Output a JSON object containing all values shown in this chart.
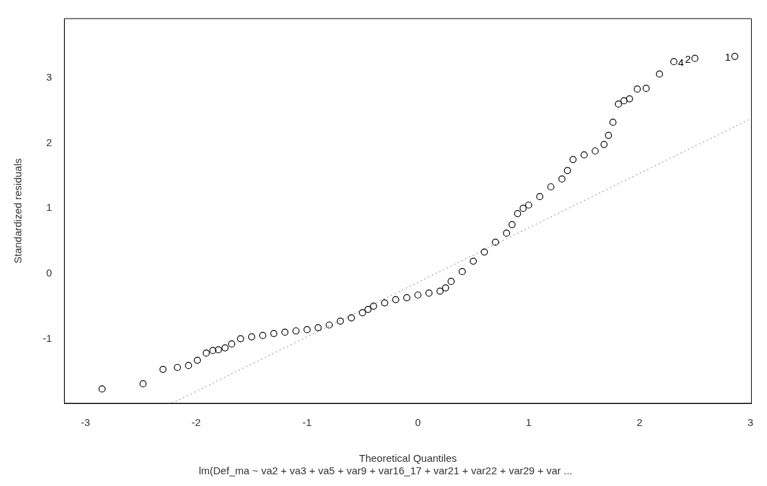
{
  "chart_data": {
    "type": "scatter",
    "xlabel": "Theoretical Quantiles",
    "ylabel": "Standardized residuals",
    "subtitle": "lm(Def_ma ~ va2 + va3 + va5 + var9 + var16_17 + var21 + var22 + var29 + var ...",
    "xlim": [
      -3.19,
      3.01
    ],
    "ylim": [
      -1.99,
      3.91
    ],
    "xticks": [
      -3,
      -2,
      -1,
      0,
      1,
      2,
      3
    ],
    "yticks": [
      -1,
      0,
      1,
      2,
      3
    ],
    "grid": false,
    "legend": false,
    "marker": "circle",
    "series": [
      {
        "color": "#000000",
        "x": [
          -2.85,
          -2.48,
          -2.3,
          -2.17,
          -2.07,
          -1.99,
          -1.91,
          -1.85,
          -1.8,
          -1.74,
          -1.68,
          -1.6,
          -1.5,
          -1.4,
          -1.3,
          -1.2,
          -1.1,
          -1.0,
          -0.9,
          -0.8,
          -0.7,
          -0.6,
          -0.5,
          -0.45,
          -0.4,
          -0.3,
          -0.2,
          -0.1,
          0.0,
          0.1,
          0.2,
          0.25,
          0.3,
          0.4,
          0.5,
          0.6,
          0.7,
          0.8,
          0.85,
          0.9,
          0.95,
          1.0,
          1.1,
          1.2,
          1.3,
          1.35,
          1.4,
          1.5,
          1.6,
          1.68,
          1.72,
          1.76,
          1.81,
          1.86,
          1.91,
          1.98,
          2.06,
          2.18,
          2.31,
          2.5,
          2.86
        ],
        "values": [
          -1.77,
          -1.69,
          -1.47,
          -1.44,
          -1.41,
          -1.33,
          -1.22,
          -1.18,
          -1.17,
          -1.14,
          -1.08,
          -1.0,
          -0.97,
          -0.95,
          -0.92,
          -0.9,
          -0.88,
          -0.86,
          -0.83,
          -0.79,
          -0.73,
          -0.68,
          -0.6,
          -0.55,
          -0.5,
          -0.45,
          -0.4,
          -0.37,
          -0.33,
          -0.3,
          -0.27,
          -0.22,
          -0.12,
          0.03,
          0.19,
          0.33,
          0.48,
          0.62,
          0.75,
          0.92,
          1.0,
          1.05,
          1.18,
          1.33,
          1.45,
          1.58,
          1.75,
          1.82,
          1.88,
          1.98,
          2.12,
          2.32,
          2.6,
          2.65,
          2.68,
          2.83,
          2.84,
          3.06,
          3.25,
          3.3,
          3.33
        ]
      },
      {
        "type": "line",
        "color": "#808080",
        "line_style": "dotted",
        "marker": "none",
        "x": [
          -2.22,
          3.01
        ],
        "values": [
          -1.99,
          2.38
        ]
      }
    ],
    "annotations": [
      {
        "text": "4",
        "x": 2.31,
        "y": 3.25
      },
      {
        "text": "2",
        "x": 2.5,
        "y": 3.3
      },
      {
        "text": "1",
        "x": 2.86,
        "y": 3.33
      }
    ]
  }
}
